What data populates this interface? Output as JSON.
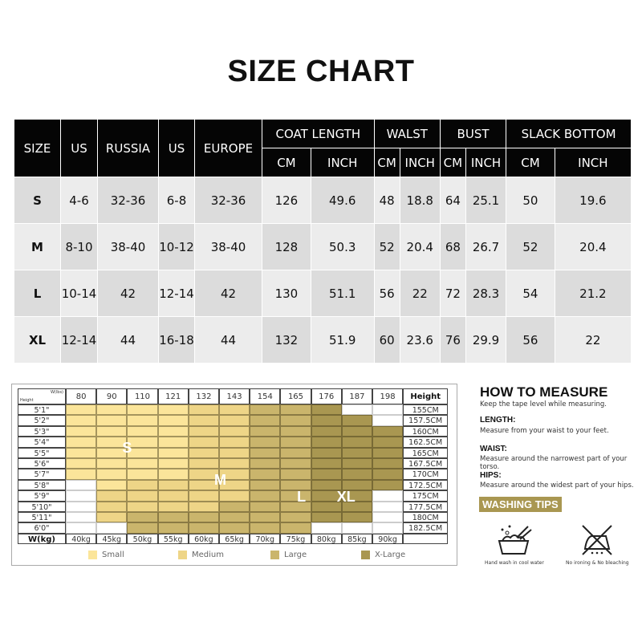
{
  "title": "SIZE CHART",
  "size_table": {
    "headers": [
      "SIZE",
      "US",
      "RUSSIA",
      "US",
      "EUROPE"
    ],
    "groups": [
      "COAT LENGTH",
      "WALST",
      "BUST",
      "SLACK BOTTOM"
    ],
    "sub": [
      "CM",
      "INCH"
    ],
    "rows": [
      [
        "S",
        "4-6",
        "32-36",
        "6-8",
        "32-36",
        "126",
        "49.6",
        "48",
        "18.8",
        "64",
        "25.1",
        "50",
        "19.6"
      ],
      [
        "M",
        "8-10",
        "38-40",
        "10-12",
        "38-40",
        "128",
        "50.3",
        "52",
        "20.4",
        "68",
        "26.7",
        "52",
        "20.4"
      ],
      [
        "L",
        "10-14",
        "42",
        "12-14",
        "42",
        "130",
        "51.1",
        "56",
        "22",
        "72",
        "28.3",
        "54",
        "21.2"
      ],
      [
        "XL",
        "12-14",
        "44",
        "16-18",
        "44",
        "132",
        "51.9",
        "60",
        "23.6",
        "76",
        "29.9",
        "56",
        "22"
      ]
    ]
  },
  "weight_height": {
    "corner_top": "W(lbs)",
    "corner_bottom": "Height",
    "height_header": "Height",
    "kg_label": "W(kg)",
    "lbs": [
      "80",
      "90",
      "110",
      "121",
      "132",
      "143",
      "154",
      "165",
      "176",
      "187",
      "198"
    ],
    "kg": [
      "40kg",
      "45kg",
      "50kg",
      "55kg",
      "60kg",
      "65kg",
      "70kg",
      "75kg",
      "80kg",
      "85kg",
      "90kg"
    ],
    "feet": [
      "5'1\"",
      "5'2\"",
      "5'3\"",
      "5'4\"",
      "5'5\"",
      "5'6\"",
      "5'7\"",
      "5'8\"",
      "5'9\"",
      "5'10\"",
      "5'11\"",
      "6'0\""
    ],
    "cm": [
      "155CM",
      "157.5CM",
      "160CM",
      "162.5CM",
      "165CM",
      "167.5CM",
      "170CM",
      "172.5CM",
      "175CM",
      "177.5CM",
      "180CM",
      "182.5CM"
    ],
    "grid": [
      "SSSSMMLLX..",
      "SSSSMMLLXX.",
      "SSSSMMLLXXX",
      "SSSSMMLLXXX",
      "SSSSMMLLXXX",
      "SSSSMMLLXXX",
      "SSSSMMLLXXX",
      ".SMMMMLLXXX",
      ".MMMMMLLXX.",
      ".MMMMLLLXX.",
      ".MLLLLLLXX.",
      "..LLLLLL..."
    ],
    "zone_labels": [
      "S",
      "M",
      "L",
      "XL"
    ],
    "legend": [
      "Small",
      "Medium",
      "Large",
      "X-Large"
    ],
    "colors": {
      "S": "#fbe59a",
      "M": "#eed587",
      "L": "#cab56c",
      "X": "#a99751"
    }
  },
  "measure": {
    "title": "HOW TO MEASURE",
    "subtitle": "Keep the tape level while measuring.",
    "items": [
      {
        "h": "LENGTH:",
        "t": "Measure from your waist to your feet."
      },
      {
        "h": "WAIST:",
        "t": "Measure around the narrowest part of your torso."
      },
      {
        "h": "HIPS:",
        "t": "Measure around the widest part of your hips."
      }
    ],
    "washing_title": "WASHING TIPS",
    "icons": [
      {
        "name": "hand-wash-icon",
        "caption": "Hand wash in cool water"
      },
      {
        "name": "no-iron-icon",
        "caption": "No ironing & No bleaching"
      }
    ]
  }
}
